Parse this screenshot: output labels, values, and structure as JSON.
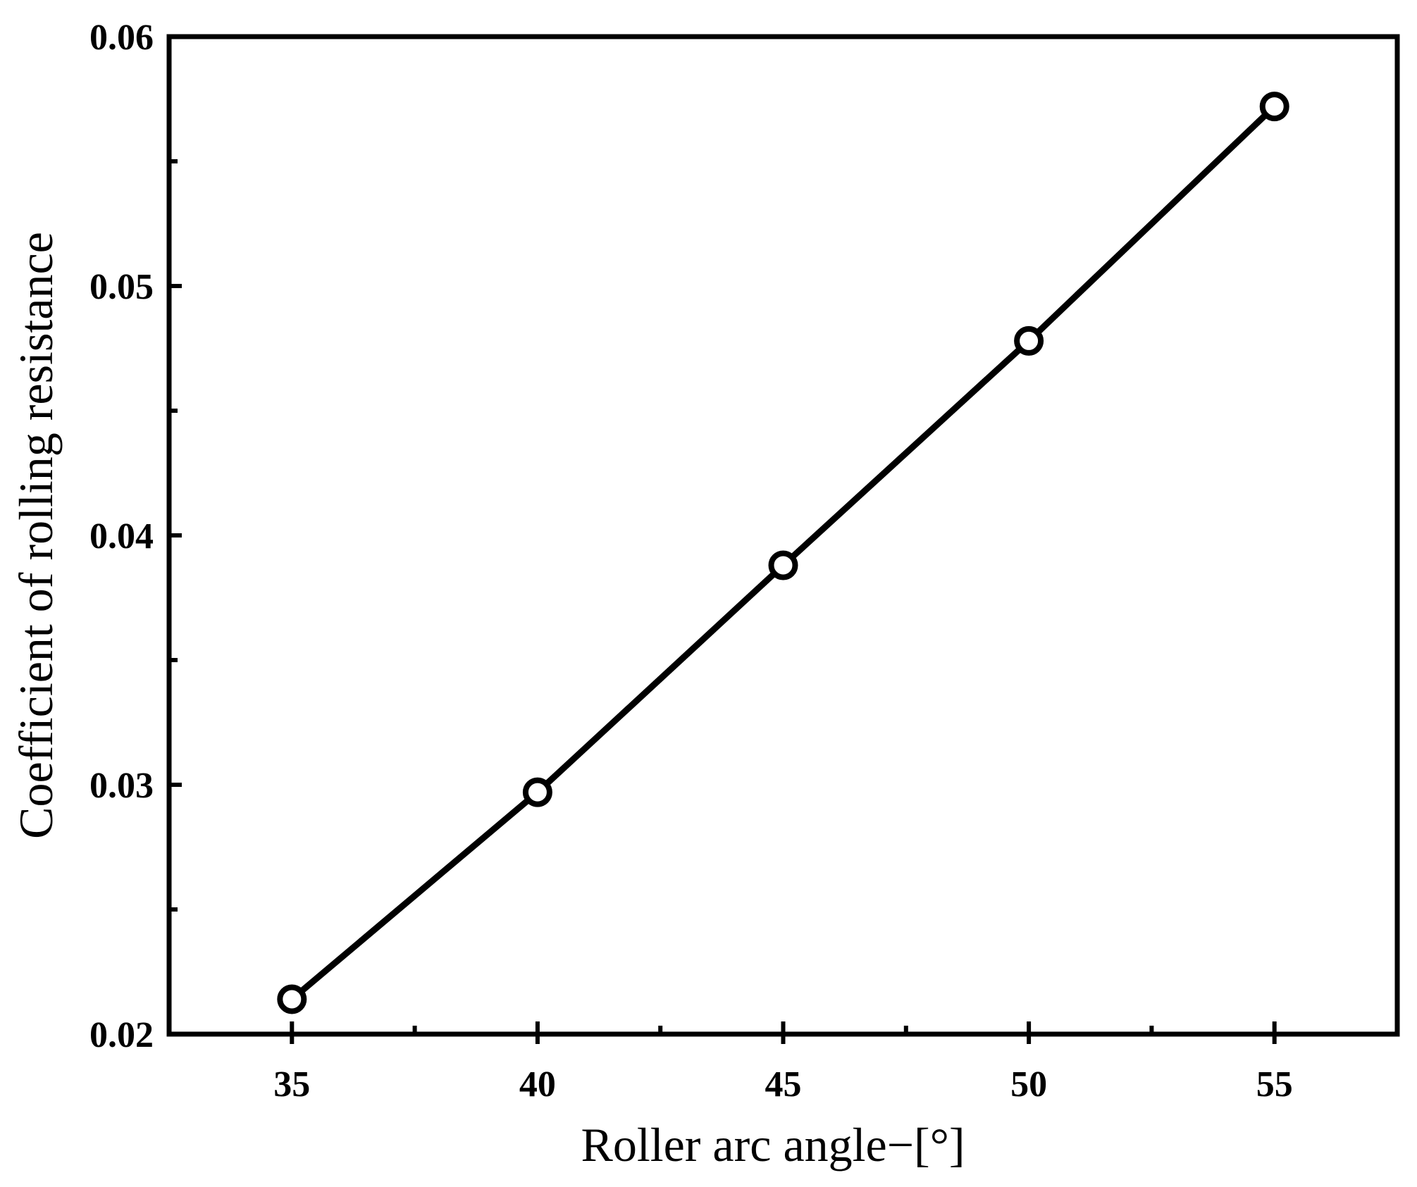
{
  "chart_data": {
    "type": "line",
    "title": "",
    "xlabel": "Roller arc angle−[°]",
    "ylabel": "Coefficient of rolling resistance",
    "xlim": [
      32.5,
      57.5
    ],
    "ylim": [
      0.02,
      0.06
    ],
    "x_ticks": [
      35,
      40,
      45,
      50,
      55
    ],
    "x_tick_labels": [
      "35",
      "40",
      "45",
      "50",
      "55"
    ],
    "y_ticks": [
      0.02,
      0.03,
      0.04,
      0.05,
      0.06
    ],
    "y_tick_labels": [
      "0.02",
      "0.03",
      "0.04",
      "0.05",
      "0.06"
    ],
    "x_minor_ticks": [
      37.5,
      42.5,
      47.5,
      52.5
    ],
    "y_minor_ticks": [
      0.025,
      0.035,
      0.045,
      0.055
    ],
    "grid": false,
    "legend": "none",
    "series": [
      {
        "x": [
          35,
          40,
          45,
          50,
          55
        ],
        "y": [
          0.0214,
          0.0297,
          0.0388,
          0.0478,
          0.0572
        ],
        "marker": "open-circle",
        "color": "#000000"
      }
    ]
  }
}
